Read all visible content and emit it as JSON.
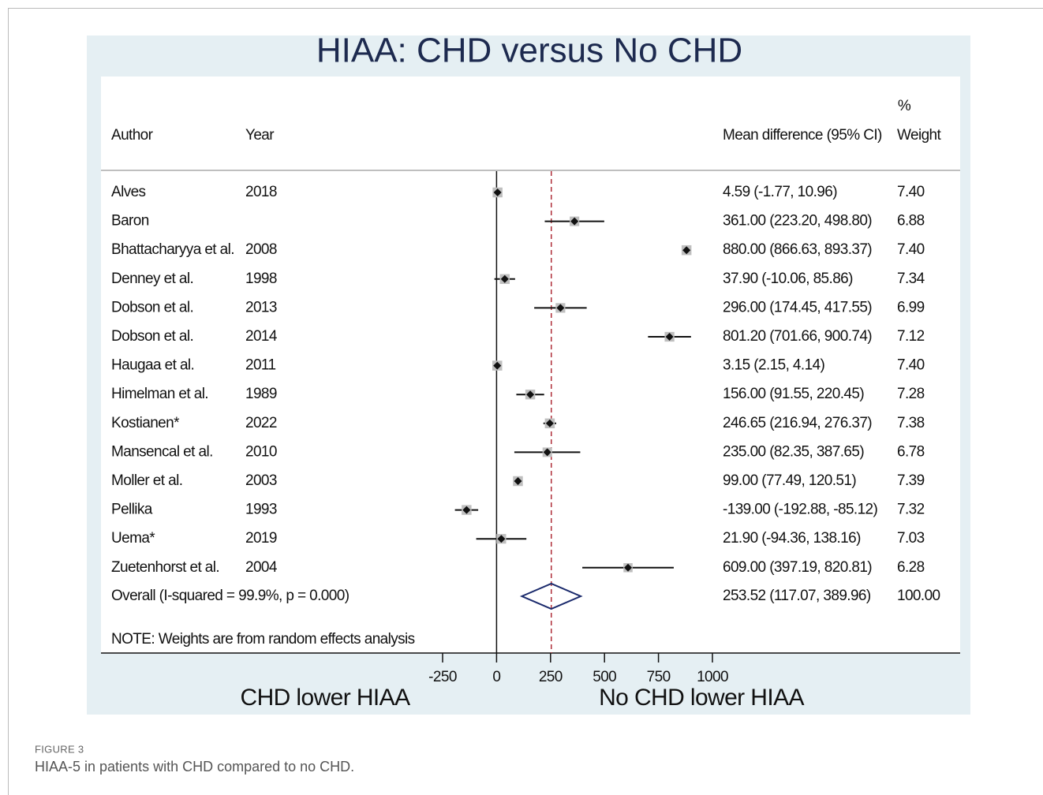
{
  "chart_data": {
    "type": "forest",
    "title": "HIAA: CHD versus No CHD",
    "columns": {
      "author": "Author",
      "year": "Year",
      "effect": "Mean difference (95% CI)",
      "weight_unit": "%",
      "weight": "Weight"
    },
    "studies": {
      "author": [
        "Alves",
        "Baron",
        "Bhattacharyya et al.",
        "Denney et al.",
        "Dobson et al.",
        "Dobson et al.",
        "Haugaa et al.",
        "Himelman et al.",
        "Kostianen*",
        "Mansencal et al.",
        "Moller et al.",
        "Pellika",
        "Uema*",
        "Zuetenhorst et al."
      ],
      "year": [
        "2018",
        null,
        "2008",
        "1998",
        "2013",
        "2014",
        "2011",
        "1989",
        "2022",
        "2010",
        "2003",
        "1993",
        "2019",
        "2004"
      ],
      "values": [
        4.59,
        361,
        880,
        37.9,
        296,
        801.2,
        3.15,
        156,
        246.65,
        235,
        99,
        -139,
        21.9,
        609
      ],
      "lower": [
        -1.77,
        223.2,
        866.63,
        -10.06,
        174.45,
        701.66,
        2.15,
        91.55,
        216.94,
        82.35,
        77.49,
        -192.88,
        -94.36,
        397.19
      ],
      "upper": [
        10.96,
        498.8,
        893.37,
        85.86,
        417.55,
        900.74,
        4.14,
        220.45,
        276.37,
        387.65,
        120.51,
        -85.12,
        138.16,
        820.81
      ],
      "value_labels": [
        "4.59 (-1.77, 10.96)",
        "361.00 (223.20, 498.80)",
        "880.00 (866.63, 893.37)",
        "37.90 (-10.06, 85.86)",
        "296.00 (174.45, 417.55)",
        "801.20 (701.66, 900.74)",
        "3.15 (2.15, 4.14)",
        "156.00 (91.55, 220.45)",
        "246.65 (216.94, 276.37)",
        "235.00 (82.35, 387.65)",
        "99.00 (77.49, 120.51)",
        "-139.00 (-192.88, -85.12)",
        "21.90 (-94.36, 138.16)",
        "609.00 (397.19, 820.81)"
      ],
      "weights": [
        7.4,
        6.88,
        7.4,
        7.34,
        6.99,
        7.12,
        7.4,
        7.28,
        7.38,
        6.78,
        7.39,
        7.32,
        7.03,
        6.28
      ],
      "weight_labels": [
        "7.40",
        "6.88",
        "7.40",
        "7.34",
        "6.99",
        "7.12",
        "7.40",
        "7.28",
        "7.38",
        "6.78",
        "7.39",
        "7.32",
        "7.03",
        "6.28"
      ]
    },
    "overall": {
      "label": "Overall  (I-squared = 99.9%, p = 0.000)",
      "value": 253.52,
      "lower": 117.07,
      "upper": 389.96,
      "value_label": "253.52 (117.07, 389.96)",
      "weight": 100,
      "weight_label": "100.00"
    },
    "note": "NOTE: Weights are from random effects analysis",
    "xlim": [
      -250,
      1000
    ],
    "xticks": [
      -250,
      0,
      250,
      500,
      750,
      1000
    ],
    "left_label": "CHD lower HIAA",
    "right_label": "No CHD lower HIAA"
  },
  "caption": {
    "label": "FIGURE 3",
    "text": "HIAA-5 in patients with CHD compared to no CHD."
  }
}
